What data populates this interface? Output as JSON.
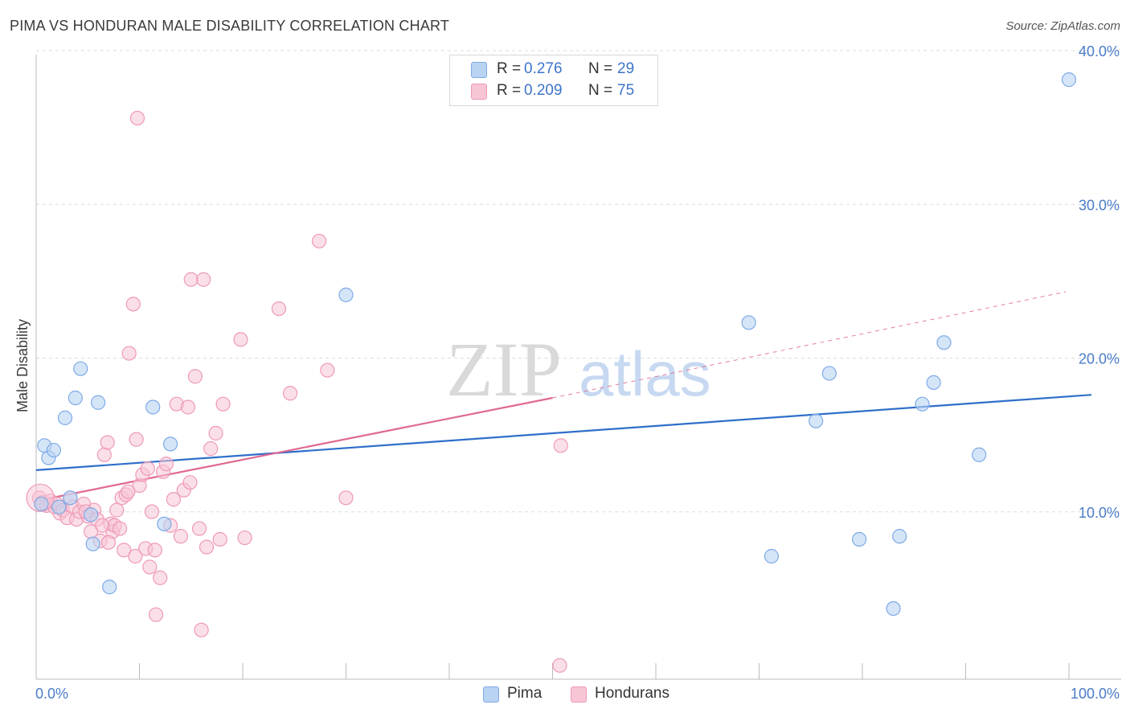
{
  "title": "PIMA VS HONDURAN MALE DISABILITY CORRELATION CHART",
  "source": "Source: ZipAtlas.com",
  "watermark": {
    "zip": "ZIP",
    "atlas": "atlas"
  },
  "legend": {
    "pima": {
      "r_label": "R =",
      "r_value": "0.276",
      "n_label": "N =",
      "n_value": "29"
    },
    "hondurans": {
      "r_label": "R =",
      "r_value": "0.209",
      "n_label": "N =",
      "n_value": "75"
    }
  },
  "colors": {
    "pima_fill": "#b9d3f3",
    "pima_stroke": "#7eaae6",
    "pima_line": "#2f6fca",
    "hond_fill": "#f8c5d5",
    "hond_stroke": "#ee9ab5",
    "hond_line": "#e06891",
    "grid": "#dddddd",
    "axis": "#bbbbbb",
    "tick_text": "#4a7cc8"
  },
  "chart_data": {
    "type": "scatter",
    "title": "PIMA VS HONDURAN MALE DISABILITY CORRELATION CHART",
    "xlabel": "",
    "ylabel": "Male Disability",
    "xlim": [
      0,
      100
    ],
    "ylim": [
      0,
      40
    ],
    "x_tick_labels": [
      "0.0%",
      "100.0%"
    ],
    "y_ticks": [
      10,
      20,
      30,
      40
    ],
    "y_tick_labels": [
      "10.0%",
      "20.0%",
      "30.0%",
      "40.0%"
    ],
    "series": [
      {
        "name": "Pima",
        "legend_label": "Pima",
        "points": [
          [
            0.5,
            11.4
          ],
          [
            0.8,
            15.2
          ],
          [
            1.2,
            14.4
          ],
          [
            1.7,
            14.9
          ],
          [
            2.8,
            17.0
          ],
          [
            3.8,
            18.3
          ],
          [
            4.3,
            20.2
          ],
          [
            5.3,
            10.7
          ],
          [
            5.5,
            8.8
          ],
          [
            6.0,
            18.0
          ],
          [
            7.1,
            6.0
          ],
          [
            11.3,
            17.7
          ],
          [
            12.4,
            10.1
          ],
          [
            13.0,
            15.3
          ],
          [
            30.0,
            25.0
          ],
          [
            69.0,
            23.2
          ],
          [
            71.2,
            8.0
          ],
          [
            75.5,
            16.8
          ],
          [
            76.8,
            19.9
          ],
          [
            79.7,
            9.1
          ],
          [
            83.0,
            4.6
          ],
          [
            83.6,
            9.3
          ],
          [
            85.8,
            17.9
          ],
          [
            86.9,
            19.3
          ],
          [
            87.9,
            21.9
          ],
          [
            91.3,
            14.6
          ],
          [
            100.0,
            39.0
          ],
          [
            2.2,
            11.2
          ],
          [
            3.3,
            11.8
          ]
        ],
        "trend": {
          "x0": 0,
          "y0": 13.6,
          "x1": 100,
          "y1": 18.5
        }
      },
      {
        "name": "Hondurans",
        "legend_label": "Hondurans",
        "points": [
          [
            0.3,
            11.8
          ],
          [
            0.6,
            11.5
          ],
          [
            1.0,
            11.3
          ],
          [
            1.4,
            11.6
          ],
          [
            1.8,
            11.2
          ],
          [
            2.0,
            11.4
          ],
          [
            2.3,
            10.8
          ],
          [
            2.6,
            11.0
          ],
          [
            3.0,
            10.5
          ],
          [
            3.3,
            11.8
          ],
          [
            3.6,
            11.2
          ],
          [
            3.9,
            10.4
          ],
          [
            4.2,
            10.9
          ],
          [
            4.6,
            11.4
          ],
          [
            5.0,
            10.6
          ],
          [
            5.3,
            9.6
          ],
          [
            5.6,
            11.0
          ],
          [
            5.9,
            10.4
          ],
          [
            6.2,
            9.0
          ],
          [
            6.6,
            14.6
          ],
          [
            6.9,
            15.4
          ],
          [
            7.2,
            10.1
          ],
          [
            7.4,
            9.6
          ],
          [
            7.6,
            10.0
          ],
          [
            7.8,
            11.0
          ],
          [
            8.1,
            9.8
          ],
          [
            8.3,
            11.8
          ],
          [
            8.5,
            8.4
          ],
          [
            8.7,
            12.0
          ],
          [
            9.0,
            21.2
          ],
          [
            9.4,
            24.4
          ],
          [
            9.7,
            15.6
          ],
          [
            10.0,
            12.6
          ],
          [
            10.3,
            13.3
          ],
          [
            10.6,
            8.5
          ],
          [
            11.0,
            7.3
          ],
          [
            11.2,
            10.9
          ],
          [
            11.5,
            8.4
          ],
          [
            12.0,
            6.6
          ],
          [
            12.3,
            13.5
          ],
          [
            12.6,
            14.0
          ],
          [
            13.0,
            10.0
          ],
          [
            13.3,
            11.7
          ],
          [
            13.6,
            17.9
          ],
          [
            14.0,
            9.3
          ],
          [
            14.3,
            12.3
          ],
          [
            14.7,
            17.7
          ],
          [
            15.0,
            26.0
          ],
          [
            15.4,
            19.7
          ],
          [
            15.8,
            9.8
          ],
          [
            16.2,
            26.0
          ],
          [
            16.5,
            8.6
          ],
          [
            16.9,
            15.0
          ],
          [
            17.4,
            16.0
          ],
          [
            17.8,
            9.1
          ],
          [
            18.1,
            17.9
          ],
          [
            19.8,
            22.1
          ],
          [
            20.2,
            9.2
          ],
          [
            23.5,
            24.1
          ],
          [
            24.6,
            18.6
          ],
          [
            27.4,
            28.5
          ],
          [
            28.2,
            20.1
          ],
          [
            30.0,
            11.8
          ],
          [
            50.7,
            0.9
          ],
          [
            50.8,
            15.2
          ],
          [
            9.8,
            36.5
          ],
          [
            11.6,
            4.2
          ],
          [
            16.0,
            3.2
          ],
          [
            10.8,
            13.7
          ],
          [
            7.0,
            8.9
          ],
          [
            6.4,
            10.0
          ],
          [
            4.8,
            10.9
          ],
          [
            8.9,
            12.2
          ],
          [
            14.9,
            12.8
          ],
          [
            9.6,
            8.0
          ]
        ],
        "trend": {
          "x0": 0,
          "y0": 11.6,
          "x1": 50,
          "y1": 18.3,
          "dashed_to_x": 100,
          "dashed_to_y": 25.2
        }
      }
    ]
  }
}
